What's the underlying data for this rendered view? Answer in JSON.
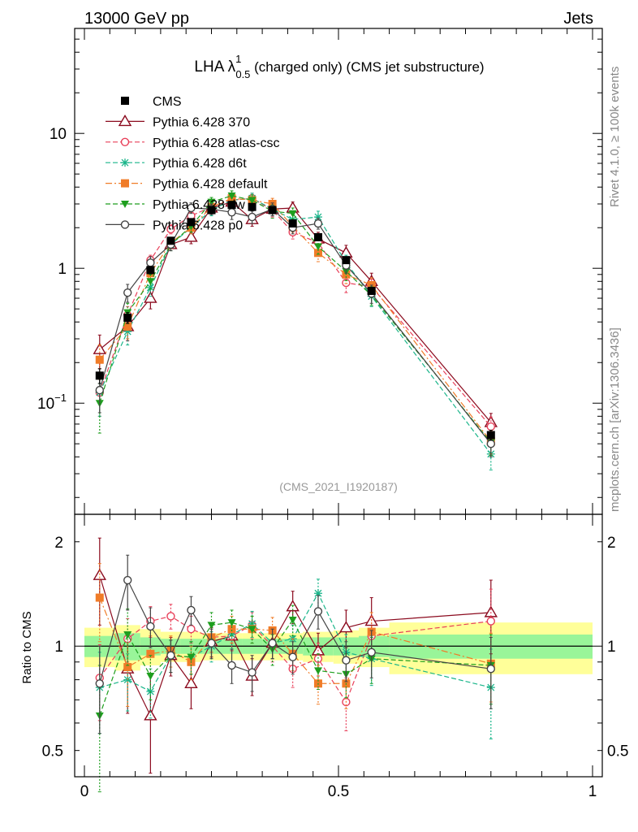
{
  "header": {
    "left": "13000 GeV pp",
    "right": "Jets"
  },
  "title": {
    "main": "LHA λ",
    "superscript": "1",
    "subscript": "0.5",
    "rest": " (charged only) (CMS jet substructure)"
  },
  "side_labels": {
    "rivet": "Rivet 4.1.0, ≥ 100k events",
    "mcplots": "mcplots.cern.ch [arXiv:1306.3436]"
  },
  "analysis_id": "(CMS_2021_I1920187)",
  "colors": {
    "cms": "#000000",
    "p370": "#8b0a1e",
    "atlas": "#e8405a",
    "d6t": "#1ab58a",
    "default": "#f07c28",
    "dw": "#1e9e1e",
    "p0": "#444444",
    "band_inner": "#99f599",
    "band_outer": "#ffff99"
  },
  "chart_data": [
    {
      "type": "line",
      "title": "LHA λ^1_0.5 (charged only) (CMS jet substructure)",
      "yscale": "log",
      "xlim": [
        0,
        1
      ],
      "ylim": [
        0.015,
        60
      ],
      "yticks": [
        {
          "value": 0.1,
          "label": "10",
          "exp": "−1"
        },
        {
          "value": 1,
          "label": "1",
          "exp": ""
        },
        {
          "value": 10,
          "label": "10",
          "exp": ""
        }
      ],
      "x": [
        0.03,
        0.085,
        0.13,
        0.17,
        0.21,
        0.25,
        0.29,
        0.33,
        0.37,
        0.41,
        0.46,
        0.515,
        0.565,
        0.8
      ],
      "series": [
        {
          "name": "CMS",
          "key": "cms",
          "marker": "square",
          "dash": "",
          "values": [
            0.16,
            0.43,
            0.97,
            1.6,
            2.2,
            2.7,
            2.95,
            2.85,
            2.7,
            2.15,
            1.7,
            1.15,
            0.68,
            0.058
          ],
          "errors": [
            0.02,
            0.04,
            0.06,
            0.08,
            0.1,
            0.1,
            0.1,
            0.1,
            0.1,
            0.1,
            0.08,
            0.06,
            0.04,
            0.005
          ]
        },
        {
          "name": "Pythia 6.428 370",
          "key": "p370",
          "marker": "triangle",
          "dash": "",
          "values": [
            0.25,
            0.37,
            0.6,
            1.5,
            1.7,
            2.8,
            3.1,
            2.3,
            2.75,
            2.8,
            1.65,
            1.3,
            0.8,
            0.072
          ],
          "errors": [
            0.07,
            0.08,
            0.1,
            0.15,
            0.18,
            0.25,
            0.3,
            0.25,
            0.3,
            0.3,
            0.2,
            0.18,
            0.12,
            0.012
          ]
        },
        {
          "name": "Pythia 6.428 atlas-csc",
          "key": "atlas",
          "marker": "circle",
          "dash": "6,3",
          "values": [
            0.12,
            0.45,
            1.15,
            1.95,
            2.45,
            2.85,
            3.2,
            3.3,
            2.7,
            1.85,
            1.55,
            0.78,
            0.73,
            0.067
          ],
          "errors": [
            0.04,
            0.07,
            0.1,
            0.15,
            0.2,
            0.25,
            0.3,
            0.3,
            0.3,
            0.2,
            0.18,
            0.12,
            0.1,
            0.012
          ]
        },
        {
          "name": "Pythia 6.428 d6t",
          "key": "d6t",
          "marker": "star",
          "dash": "6,3",
          "values": [
            0.12,
            0.34,
            0.72,
            1.5,
            2.0,
            2.7,
            3.2,
            3.3,
            2.75,
            2.3,
            2.4,
            1.1,
            0.62,
            0.042
          ],
          "errors": [
            0.04,
            0.07,
            0.1,
            0.15,
            0.2,
            0.25,
            0.3,
            0.3,
            0.3,
            0.25,
            0.25,
            0.15,
            0.1,
            0.01
          ]
        },
        {
          "name": "Pythia 6.428 default",
          "key": "default",
          "marker": "square",
          "dash": "8,3,2,3",
          "values": [
            0.21,
            0.37,
            0.92,
            1.55,
            2.0,
            2.85,
            3.3,
            3.2,
            3.0,
            2.05,
            1.3,
            0.9,
            0.75,
            0.052
          ],
          "errors": [
            0.06,
            0.07,
            0.1,
            0.15,
            0.2,
            0.25,
            0.3,
            0.3,
            0.3,
            0.2,
            0.18,
            0.13,
            0.1,
            0.01
          ]
        },
        {
          "name": "Pythia 6.428 dw",
          "key": "dw",
          "marker": "tri-down",
          "dash": "6,3",
          "values": [
            0.1,
            0.47,
            0.8,
            1.5,
            2.05,
            3.1,
            3.45,
            3.2,
            2.65,
            2.55,
            1.45,
            0.95,
            0.63,
            0.051
          ],
          "errors": [
            0.04,
            0.08,
            0.1,
            0.15,
            0.2,
            0.25,
            0.3,
            0.3,
            0.3,
            0.25,
            0.18,
            0.14,
            0.1,
            0.01
          ]
        },
        {
          "name": "Pythia 6.428 p0",
          "key": "p0",
          "marker": "circle",
          "dash": "",
          "values": [
            0.125,
            0.66,
            1.1,
            1.5,
            2.8,
            2.75,
            2.6,
            2.4,
            2.75,
            2.0,
            2.15,
            1.05,
            0.65,
            0.05
          ],
          "errors": [
            0.04,
            0.1,
            0.12,
            0.15,
            0.25,
            0.25,
            0.3,
            0.25,
            0.3,
            0.2,
            0.2,
            0.13,
            0.1,
            0.01
          ]
        }
      ]
    },
    {
      "type": "line",
      "ylabel": "Ratio to CMS",
      "yscale": "log",
      "xlim": [
        0,
        1
      ],
      "ylim": [
        0.42,
        2.4
      ],
      "xticks": [
        {
          "value": 0,
          "label": "0"
        },
        {
          "value": 0.5,
          "label": "0.5"
        },
        {
          "value": 1,
          "label": "1"
        }
      ],
      "yticks": [
        {
          "value": 0.5,
          "label": "0.5"
        },
        {
          "value": 1,
          "label": "1"
        },
        {
          "value": 2,
          "label": "2"
        }
      ],
      "band_edges": [
        0,
        0.06,
        0.11,
        0.15,
        0.19,
        0.23,
        0.27,
        0.31,
        0.35,
        0.39,
        0.43,
        0.49,
        0.54,
        0.6,
        1.0
      ],
      "band_inner": [
        0.07,
        0.09,
        0.06,
        0.05,
        0.05,
        0.05,
        0.05,
        0.05,
        0.05,
        0.05,
        0.06,
        0.06,
        0.07,
        0.08
      ],
      "band_outer": [
        0.13,
        0.15,
        0.12,
        0.1,
        0.1,
        0.09,
        0.09,
        0.09,
        0.09,
        0.09,
        0.1,
        0.11,
        0.13,
        0.17
      ],
      "series": [
        {
          "key": "p370",
          "values": [
            1.6,
            0.86,
            0.63,
            0.94,
            0.78,
            1.03,
            1.07,
            0.82,
            1.02,
            1.3,
            0.97,
            1.13,
            1.18,
            1.25
          ],
          "errors": [
            0.45,
            0.22,
            0.2,
            0.12,
            0.12,
            0.1,
            0.1,
            0.1,
            0.1,
            0.14,
            0.12,
            0.14,
            0.2,
            0.3
          ]
        },
        {
          "key": "atlas",
          "values": [
            0.81,
            1.05,
            1.18,
            1.22,
            1.12,
            1.06,
            1.07,
            1.15,
            1.0,
            0.86,
            0.92,
            0.69,
            1.07,
            1.18
          ],
          "errors": [
            0.2,
            0.15,
            0.12,
            0.1,
            0.1,
            0.1,
            0.1,
            0.1,
            0.1,
            0.1,
            0.1,
            0.12,
            0.15,
            0.28
          ]
        },
        {
          "key": "d6t",
          "values": [
            0.76,
            0.8,
            0.74,
            0.94,
            0.93,
            1.0,
            1.08,
            1.16,
            1.02,
            1.05,
            1.42,
            0.96,
            0.92,
            0.76
          ],
          "errors": [
            0.2,
            0.15,
            0.12,
            0.1,
            0.1,
            0.1,
            0.1,
            0.1,
            0.1,
            0.1,
            0.14,
            0.12,
            0.15,
            0.22
          ]
        },
        {
          "key": "default",
          "values": [
            1.38,
            0.87,
            0.95,
            0.97,
            0.9,
            1.06,
            1.12,
            1.12,
            1.11,
            0.95,
            0.78,
            0.78,
            1.1,
            0.89
          ],
          "errors": [
            0.35,
            0.2,
            0.12,
            0.1,
            0.1,
            0.1,
            0.1,
            0.1,
            0.1,
            0.1,
            0.1,
            0.12,
            0.15,
            0.2
          ]
        },
        {
          "key": "dw",
          "values": [
            0.63,
            1.08,
            0.82,
            0.94,
            0.93,
            1.15,
            1.17,
            1.12,
            0.98,
            1.19,
            0.85,
            0.83,
            0.92,
            0.88
          ],
          "errors": [
            0.25,
            0.2,
            0.12,
            0.1,
            0.1,
            0.1,
            0.1,
            0.1,
            0.1,
            0.12,
            0.1,
            0.12,
            0.14,
            0.2
          ]
        },
        {
          "key": "p0",
          "values": [
            0.78,
            1.55,
            1.14,
            0.94,
            1.27,
            1.02,
            0.88,
            0.84,
            1.02,
            0.93,
            1.26,
            0.91,
            0.96,
            0.86
          ],
          "errors": [
            0.22,
            0.28,
            0.15,
            0.1,
            0.12,
            0.1,
            0.1,
            0.1,
            0.1,
            0.1,
            0.14,
            0.12,
            0.15,
            0.2
          ]
        }
      ]
    }
  ]
}
